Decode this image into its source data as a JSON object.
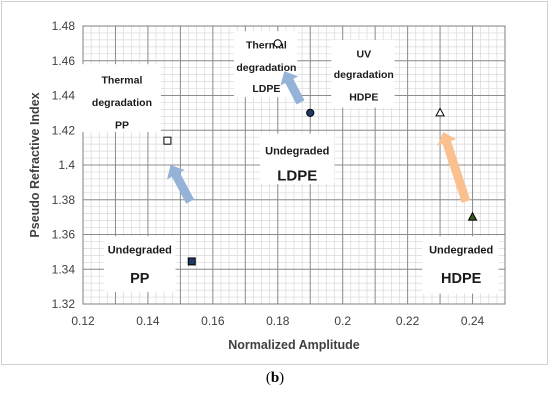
{
  "chart_data": {
    "type": "scatter",
    "xlabel": "Normalized Amplitude",
    "ylabel": "Pseudo Refractive Index",
    "xlim": [
      0.12,
      0.25
    ],
    "ylim": [
      1.32,
      1.48
    ],
    "x_ticks": [
      "0.12",
      "0.14",
      "0.16",
      "0.18",
      "0.2",
      "0.22",
      "0.24"
    ],
    "y_ticks": [
      "1.32",
      "1.34",
      "1.36",
      "1.38",
      "1.4",
      "1.42",
      "1.44",
      "1.46",
      "1.48"
    ],
    "grid": true,
    "points": [
      {
        "x": 0.1535,
        "y": 1.3445,
        "marker": "square",
        "fill": "#1f3864"
      },
      {
        "x": 0.146,
        "y": 1.414,
        "marker": "square",
        "fill": "#ffffff"
      },
      {
        "x": 0.19,
        "y": 1.43,
        "marker": "circle",
        "fill": "#1f3864"
      },
      {
        "x": 0.18,
        "y": 1.47,
        "marker": "circle",
        "fill": "#ffffff"
      },
      {
        "x": 0.24,
        "y": 1.37,
        "marker": "triangle",
        "fill": "#3a5a1a"
      },
      {
        "x": 0.23,
        "y": 1.43,
        "marker": "triangle",
        "fill": "#ffffff"
      }
    ],
    "annotations": [
      {
        "lines": [
          "Thermal",
          "degradation",
          "PP"
        ],
        "size": "small"
      },
      {
        "lines": [
          "Thermal",
          "degradation",
          "LDPE"
        ],
        "size": "small"
      },
      {
        "lines": [
          "UV",
          "degradation",
          "HDPE"
        ],
        "size": "small"
      },
      {
        "lines": [
          "Undegraded",
          "LDPE"
        ],
        "size": "mixed"
      },
      {
        "lines": [
          "Undegraded",
          "PP"
        ],
        "size": "mixed"
      },
      {
        "lines": [
          "Undegraded",
          "HDPE"
        ],
        "size": "mixed"
      }
    ],
    "arrows": [
      {
        "from": [
          0.153,
          1.379
        ],
        "to": [
          0.147,
          1.4
        ],
        "color": "#95b3d7"
      },
      {
        "from": [
          0.187,
          1.436
        ],
        "to": [
          0.182,
          1.454
        ],
        "color": "#95b3d7"
      },
      {
        "from": [
          0.238,
          1.379
        ],
        "to": [
          0.231,
          1.419
        ],
        "color": "#fac090"
      }
    ]
  },
  "caption": {
    "open": "(",
    "label": "b",
    "close": ")"
  }
}
